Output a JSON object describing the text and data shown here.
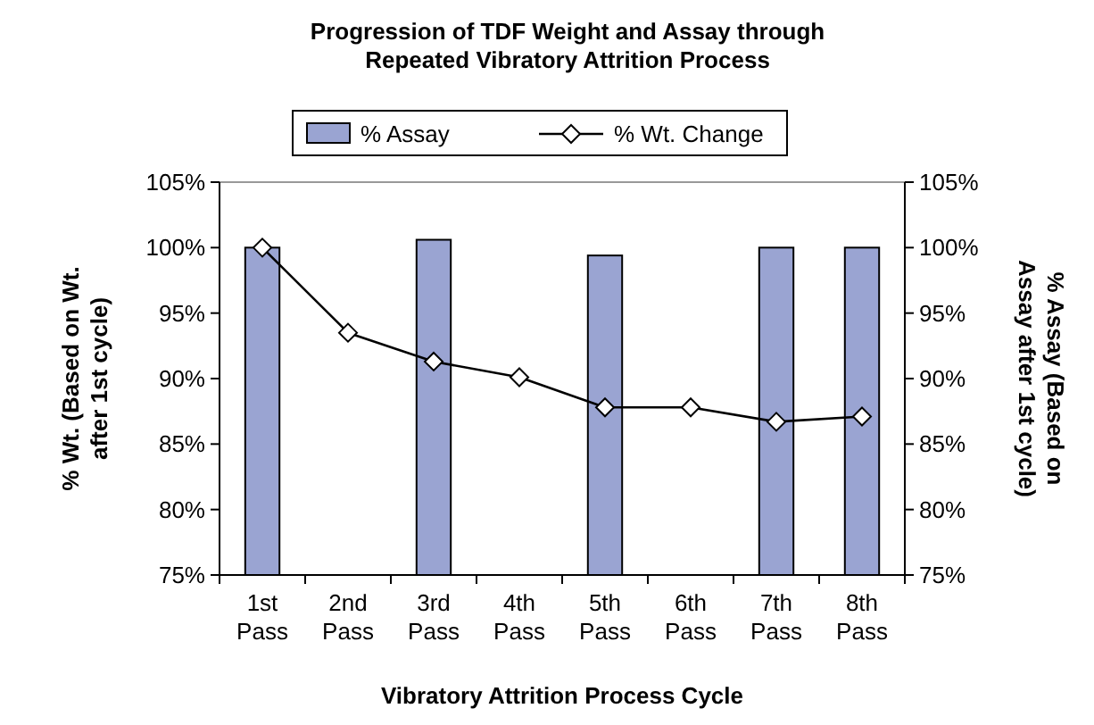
{
  "chart_data": {
    "type": "bar",
    "title": "Progression of TDF Weight and Assay through\nRepeated Vibratory Attrition Process",
    "xlabel": "Vibratory Attrition Process Cycle",
    "ylabel": "% Wt. (Based on Wt.\nafter 1st cycle)",
    "y2label": "% Assay (Based on\nAssay after 1st cycle)",
    "categories": [
      "1st Pass",
      "2nd Pass",
      "3rd Pass",
      "4th Pass",
      "5th Pass",
      "6th Pass",
      "7th Pass",
      "8th Pass"
    ],
    "series": [
      {
        "name": "% Assay",
        "axis": "y2",
        "color": "#9aa4d2",
        "values": [
          100,
          null,
          100.6,
          null,
          99.4,
          null,
          100,
          100
        ]
      },
      {
        "name": "% Wt. Change",
        "type": "line",
        "color": "#000000",
        "marker": "diamond",
        "values": [
          100,
          93.5,
          91.3,
          90.1,
          87.8,
          87.8,
          86.7,
          87.1
        ]
      }
    ],
    "ylim": [
      75,
      105
    ],
    "yticks": [
      {
        "value": 75,
        "label": "75%"
      },
      {
        "value": 80,
        "label": "80%"
      },
      {
        "value": 85,
        "label": "85%"
      },
      {
        "value": 90,
        "label": "90%"
      },
      {
        "value": 95,
        "label": "95%"
      },
      {
        "value": 100,
        "label": "100%"
      },
      {
        "value": 105,
        "label": "105%"
      }
    ],
    "y2lim": [
      75,
      105
    ],
    "y2ticks": [
      {
        "value": 75,
        "label": "75%"
      },
      {
        "value": 80,
        "label": "80%"
      },
      {
        "value": 85,
        "label": "85%"
      },
      {
        "value": 90,
        "label": "90%"
      },
      {
        "value": 95,
        "label": "95%"
      },
      {
        "value": 100,
        "label": "100%"
      },
      {
        "value": 105,
        "label": "105%"
      }
    ],
    "grid": false,
    "legend": "top"
  }
}
